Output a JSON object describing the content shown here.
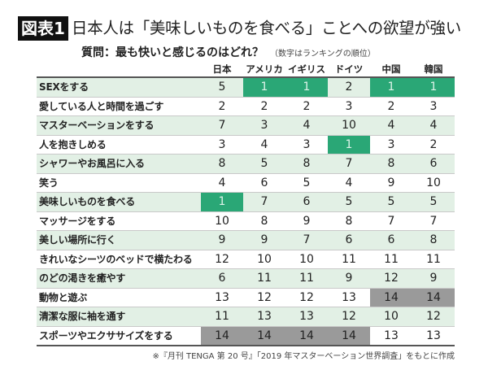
{
  "figure_label": "図表1",
  "title": "日本人は「美味しいものを食べる」ことへの欲望が強い",
  "subtitle": "質問：最も快いと感じるのはどれ？",
  "subtitle_note": "（数字はランキングの順位）",
  "source": "※『月刊 TENGA 第 20 号』「2019 年マスターベーション世界調査」をもとに作成",
  "colors": {
    "top_rank": "#2aa776",
    "bottom_rank": "#9a9a9a",
    "alt_row": "#e2f0e5"
  },
  "chart_data": {
    "type": "table",
    "title": "日本人は「美味しいものを食べる」ことへの欲望が強い",
    "columns": [
      "日本",
      "アメリカ",
      "イギリス",
      "ドイツ",
      "中国",
      "韓国"
    ],
    "rows": [
      {
        "label": "SEXをする",
        "values": [
          5,
          1,
          1,
          2,
          1,
          1
        ]
      },
      {
        "label": "愛している人と時間を過ごす",
        "values": [
          2,
          2,
          2,
          3,
          2,
          3
        ]
      },
      {
        "label": "マスターベーションをする",
        "values": [
          7,
          3,
          4,
          10,
          4,
          4
        ]
      },
      {
        "label": "人を抱きしめる",
        "values": [
          3,
          4,
          3,
          1,
          3,
          2
        ]
      },
      {
        "label": "シャワーやお風呂に入る",
        "values": [
          8,
          5,
          8,
          7,
          8,
          6
        ]
      },
      {
        "label": "笑う",
        "values": [
          4,
          6,
          5,
          4,
          9,
          10
        ]
      },
      {
        "label": "美味しいものを食べる",
        "values": [
          1,
          7,
          6,
          5,
          5,
          5
        ]
      },
      {
        "label": "マッサージをする",
        "values": [
          10,
          8,
          9,
          8,
          7,
          7
        ]
      },
      {
        "label": "美しい場所に行く",
        "values": [
          9,
          9,
          7,
          6,
          6,
          8
        ]
      },
      {
        "label": "きれいなシーツのベッドで横たわる",
        "values": [
          12,
          10,
          10,
          11,
          11,
          11
        ]
      },
      {
        "label": "のどの渇きを癒やす",
        "values": [
          6,
          11,
          11,
          9,
          12,
          9
        ]
      },
      {
        "label": "動物と遊ぶ",
        "values": [
          13,
          12,
          12,
          13,
          14,
          14
        ]
      },
      {
        "label": "清潔な服に袖を通す",
        "values": [
          11,
          13,
          13,
          12,
          10,
          12
        ]
      },
      {
        "label": "スポーツやエクササイズをする",
        "values": [
          14,
          14,
          14,
          14,
          13,
          13
        ]
      }
    ]
  }
}
